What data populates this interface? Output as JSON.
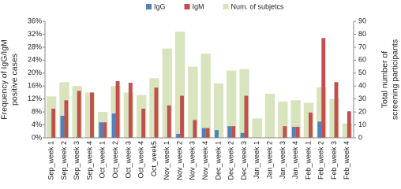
{
  "chart_data": {
    "type": "bar",
    "categories": [
      "Sep_week 1",
      "Sep_week 2",
      "Sep_week 3",
      "Sep_week 4",
      "Oct_week 1",
      "Oct_week 2",
      "Oct_week 3",
      "Oct_week 4",
      "Oct_week5",
      "Nov_week 1",
      "Nov_week 2",
      "Nov_week 3",
      "Nov_week 4",
      "Dec_week 1",
      "Dec_week 2",
      "Dec_week 3",
      "Jan_week 1",
      "Jan_week 2",
      "Jan_week 3",
      "Jan_week 4",
      "Feb_week 1",
      "Feb_week 2",
      "Feb_week 3",
      "Feb_week 4"
    ],
    "series": [
      {
        "name": "IgG",
        "color": "#4f81bd",
        "values": [
          0,
          6.8,
          0,
          0,
          4.8,
          7.5,
          0,
          0,
          0,
          0,
          1.2,
          0,
          3,
          2.4,
          3.6,
          1.5,
          0,
          0,
          0,
          3.4,
          0,
          5,
          0,
          0
        ]
      },
      {
        "name": "IgM",
        "color": "#c0504d",
        "values": [
          9,
          11.6,
          14.5,
          14,
          4.8,
          17.5,
          17,
          9,
          15.5,
          10,
          13,
          5.5,
          3,
          0,
          3.6,
          13,
          0,
          0,
          3.6,
          3.4,
          7.8,
          30.8,
          17.2,
          8.2
        ]
      },
      {
        "name": "Num. of subjetcs",
        "color": "#d7e4bd",
        "axis": "y2",
        "values": [
          32,
          43,
          40,
          35,
          20,
          40,
          35,
          33,
          46,
          69,
          82,
          55,
          65,
          42,
          52,
          53,
          15,
          34,
          28,
          29,
          27,
          39,
          30,
          11
        ]
      }
    ],
    "y_label": [
      "Frequency of IgG/IgM",
      "positive cases"
    ],
    "y2_label": [
      "Total number of",
      "screening participants"
    ],
    "ylim": [
      0,
      36
    ],
    "yticks": [
      {
        "value": 0,
        "label": "0%"
      },
      {
        "value": 4,
        "label": "4%"
      },
      {
        "value": 8,
        "label": "8%"
      },
      {
        "value": 12,
        "label": "12%"
      },
      {
        "value": 16,
        "label": "16%"
      },
      {
        "value": 20,
        "label": "20%"
      },
      {
        "value": 24,
        "label": "24%"
      },
      {
        "value": 28,
        "label": "28%"
      },
      {
        "value": 32,
        "label": "32%"
      },
      {
        "value": 36,
        "label": "36%"
      }
    ],
    "y2lim": [
      0,
      90
    ],
    "y2ticks": [
      0,
      10,
      20,
      30,
      40,
      50,
      60,
      70,
      80,
      90
    ],
    "legend": "top"
  }
}
